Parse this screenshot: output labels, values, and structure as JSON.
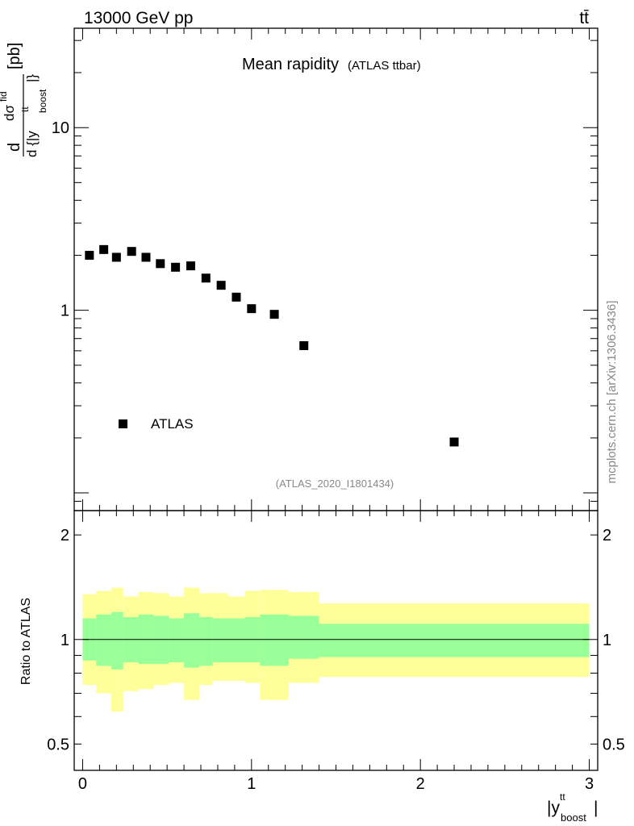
{
  "header": {
    "energy_label": "13000 GeV pp",
    "process_label": "tt̄"
  },
  "side_label": "mcplots.cern.ch [arXiv:1306.3436]",
  "chart_data": [
    {
      "type": "scatter",
      "panel": "main",
      "title": "Mean rapidity",
      "subtitle": "(ATLAS ttbar)",
      "analysis_tag": "(ATLAS_2020_I1801434)",
      "ylabel_parts": [
        "d",
        "dσ",
        "fid",
        "d {|y",
        "tt",
        "boost",
        "|}",
        "[pb]"
      ],
      "yscale": "log",
      "ylim": [
        0.08,
        35
      ],
      "xlim": [
        -0.05,
        3.05
      ],
      "yticks": [
        1,
        10
      ],
      "ytick_labels": [
        "1",
        "10"
      ],
      "grid": false,
      "legend_position": "bottom-left",
      "series": [
        {
          "name": "ATLAS",
          "marker": "square",
          "color": "#000000",
          "x": [
            0.04,
            0.125,
            0.2,
            0.29,
            0.375,
            0.46,
            0.55,
            0.64,
            0.73,
            0.82,
            0.91,
            1.0,
            1.135,
            1.31,
            2.2
          ],
          "y": [
            2.0,
            2.15,
            1.95,
            2.1,
            1.95,
            1.8,
            1.72,
            1.75,
            1.5,
            1.37,
            1.18,
            1.02,
            0.95,
            0.64,
            0.19
          ]
        }
      ]
    },
    {
      "type": "area",
      "panel": "ratio",
      "ylabel": "Ratio to ATLAS",
      "xlabel_parts": [
        "|y",
        "tt",
        "boost",
        "|"
      ],
      "yscale": "log",
      "ylim": [
        0.42,
        2.35
      ],
      "xlim": [
        -0.05,
        3.05
      ],
      "yticks": [
        0.5,
        1,
        2
      ],
      "ytick_labels": [
        "0.5",
        "1",
        "2"
      ],
      "xticks": [
        0,
        1,
        2,
        3
      ],
      "xtick_labels": [
        "0",
        "1",
        "2",
        "3"
      ],
      "reference_line": 1,
      "bin_edges": [
        0.0,
        0.08,
        0.17,
        0.24,
        0.33,
        0.42,
        0.51,
        0.6,
        0.69,
        0.77,
        0.86,
        0.96,
        1.05,
        1.22,
        1.4,
        3.0
      ],
      "bands": [
        {
          "name": "inner",
          "color": "#99ff99",
          "lower": [
            0.87,
            0.84,
            0.82,
            0.86,
            0.85,
            0.85,
            0.86,
            0.83,
            0.84,
            0.86,
            0.86,
            0.86,
            0.84,
            0.88,
            0.89
          ],
          "upper": [
            1.15,
            1.18,
            1.2,
            1.16,
            1.18,
            1.17,
            1.15,
            1.19,
            1.16,
            1.15,
            1.15,
            1.16,
            1.18,
            1.17,
            1.11
          ]
        },
        {
          "name": "outer",
          "color": "#ffff99",
          "lower": [
            0.74,
            0.7,
            0.62,
            0.71,
            0.72,
            0.74,
            0.75,
            0.67,
            0.74,
            0.76,
            0.76,
            0.75,
            0.67,
            0.75,
            0.78
          ],
          "upper": [
            1.35,
            1.38,
            1.41,
            1.33,
            1.37,
            1.36,
            1.33,
            1.41,
            1.36,
            1.36,
            1.33,
            1.38,
            1.39,
            1.37,
            1.27
          ]
        }
      ]
    }
  ]
}
